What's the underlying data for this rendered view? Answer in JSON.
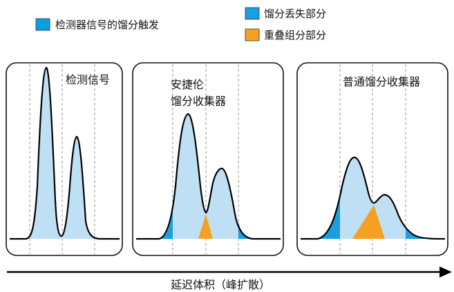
{
  "colors": {
    "trigger": "#0a9ee0",
    "loss": "#1aa0e0",
    "overlap": "#f5a020",
    "peak_fill": "#bfdff5",
    "line": "#000000"
  },
  "legend": {
    "trigger_label": "检测器信号的馏分触发",
    "loss_label": "馏分丢失部分",
    "overlap_label": "重叠组分部分"
  },
  "panels": [
    {
      "title_lines": [
        "检测信号"
      ]
    },
    {
      "title_lines": [
        "安捷伦",
        "馏分收集器"
      ]
    },
    {
      "title_lines": [
        "普通馏分收集器"
      ]
    }
  ],
  "axis": {
    "label": "延迟体积（峰扩散）"
  }
}
